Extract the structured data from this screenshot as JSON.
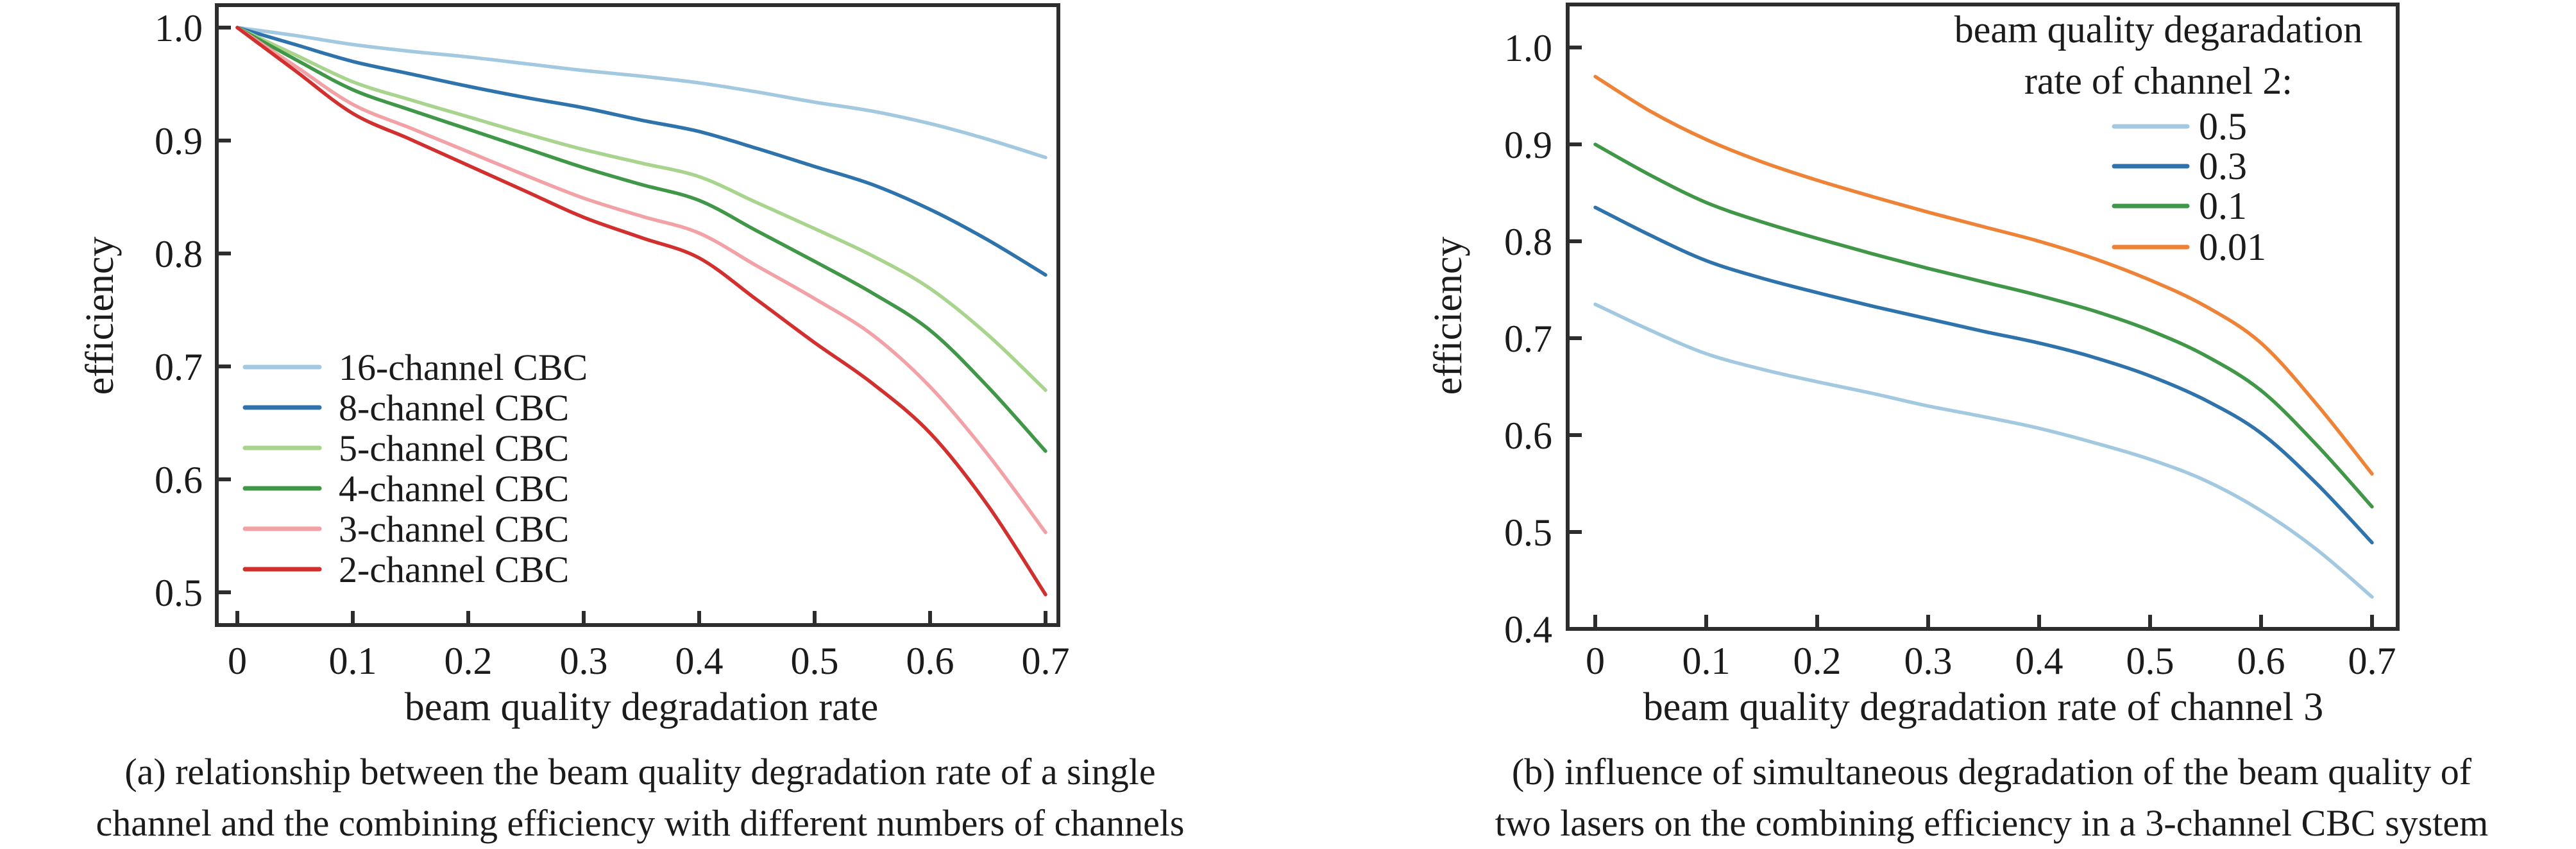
{
  "page": {
    "background": "#ffffff",
    "axis_color": "#2d2d2d",
    "text_color": "#1b1b1b"
  },
  "chart_data": [
    {
      "type": "line",
      "panel": "a",
      "title": "",
      "xlabel": "beam quality degradation rate",
      "ylabel": "efficiency",
      "xlim": [
        0,
        0.7
      ],
      "ylim": [
        0.47,
        1.02
      ],
      "grid": false,
      "legend_position": "inside lower-left",
      "xtick_labels": [
        "0",
        "0.1",
        "0.2",
        "0.3",
        "0.4",
        "0.5",
        "0.6",
        "0.7"
      ],
      "ytick_labels": [
        "1.0",
        "0.9",
        "0.8",
        "0.7",
        "0.6",
        "0.5"
      ],
      "x": [
        0,
        0.05,
        0.1,
        0.15,
        0.2,
        0.25,
        0.3,
        0.35,
        0.4,
        0.45,
        0.5,
        0.55,
        0.6,
        0.65,
        0.7
      ],
      "series": [
        {
          "name": "16-channel CBC",
          "color": "#a3c9e0",
          "values": [
            1.0,
            0.993,
            0.985,
            0.979,
            0.974,
            0.968,
            0.962,
            0.957,
            0.951,
            0.943,
            0.934,
            0.926,
            0.915,
            0.901,
            0.885
          ]
        },
        {
          "name": "8-channel CBC",
          "color": "#2e73ac",
          "values": [
            1.0,
            0.985,
            0.97,
            0.959,
            0.948,
            0.938,
            0.929,
            0.918,
            0.908,
            0.893,
            0.877,
            0.861,
            0.839,
            0.812,
            0.781
          ]
        },
        {
          "name": "5-channel CBC",
          "color": "#a8d48e",
          "values": [
            1.0,
            0.976,
            0.952,
            0.936,
            0.921,
            0.906,
            0.892,
            0.88,
            0.868,
            0.845,
            0.822,
            0.798,
            0.769,
            0.728,
            0.679
          ]
        },
        {
          "name": "4-channel CBC",
          "color": "#3f9747",
          "values": [
            1.0,
            0.972,
            0.945,
            0.927,
            0.91,
            0.893,
            0.876,
            0.861,
            0.847,
            0.82,
            0.793,
            0.765,
            0.732,
            0.682,
            0.625
          ]
        },
        {
          "name": "3-channel CBC",
          "color": "#f2a2a6",
          "values": [
            1.0,
            0.966,
            0.932,
            0.911,
            0.89,
            0.869,
            0.849,
            0.833,
            0.818,
            0.789,
            0.76,
            0.728,
            0.682,
            0.622,
            0.553
          ]
        },
        {
          "name": "2-channel CBC",
          "color": "#d2302f",
          "values": [
            1.0,
            0.962,
            0.924,
            0.901,
            0.878,
            0.855,
            0.832,
            0.814,
            0.796,
            0.759,
            0.721,
            0.685,
            0.641,
            0.577,
            0.498
          ]
        }
      ],
      "caption": [
        "(a) relationship between the beam quality degradation rate of a single",
        "channel and the combining efficiency with different numbers of channels"
      ]
    },
    {
      "type": "line",
      "panel": "b",
      "title": "",
      "xlabel": "beam quality degradation rate of channel 3",
      "ylabel": "efficiency",
      "xlim": [
        0,
        0.7
      ],
      "ylim": [
        0.4,
        1.04
      ],
      "grid": false,
      "legend_position": "inside upper-right",
      "legend_title": [
        "beam quality degaradation",
        "rate of channel 2:"
      ],
      "xtick_labels": [
        "0",
        "0.1",
        "0.2",
        "0.3",
        "0.4",
        "0.5",
        "0.6",
        "0.7"
      ],
      "ytick_labels": [
        "1.0",
        "0.9",
        "0.8",
        "0.7",
        "0.6",
        "0.5",
        "0.4"
      ],
      "x": [
        0,
        0.05,
        0.1,
        0.15,
        0.2,
        0.25,
        0.3,
        0.35,
        0.4,
        0.45,
        0.5,
        0.55,
        0.6,
        0.65,
        0.7
      ],
      "series": [
        {
          "name": "0.5",
          "color": "#a3c9e0",
          "values": [
            0.735,
            0.708,
            0.684,
            0.668,
            0.655,
            0.643,
            0.63,
            0.619,
            0.607,
            0.592,
            0.575,
            0.553,
            0.522,
            0.482,
            0.433
          ]
        },
        {
          "name": "0.3",
          "color": "#2e73ac",
          "values": [
            0.835,
            0.806,
            0.78,
            0.762,
            0.747,
            0.733,
            0.72,
            0.707,
            0.695,
            0.68,
            0.661,
            0.636,
            0.602,
            0.55,
            0.489
          ]
        },
        {
          "name": "0.1",
          "color": "#3f9747",
          "values": [
            0.9,
            0.868,
            0.84,
            0.82,
            0.803,
            0.787,
            0.772,
            0.758,
            0.744,
            0.728,
            0.708,
            0.682,
            0.646,
            0.59,
            0.526
          ]
        },
        {
          "name": "0.01",
          "color": "#ee8337",
          "values": [
            0.97,
            0.934,
            0.905,
            0.882,
            0.863,
            0.846,
            0.83,
            0.815,
            0.8,
            0.782,
            0.76,
            0.733,
            0.695,
            0.632,
            0.56
          ]
        }
      ],
      "caption": [
        "(b) influence of simultaneous degradation of the beam quality of",
        "two lasers on the combining efficiency in a 3-channel CBC system"
      ]
    }
  ]
}
